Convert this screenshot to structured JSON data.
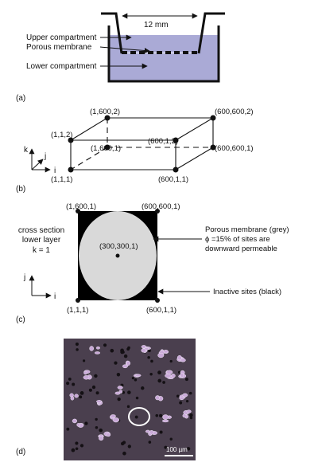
{
  "colors": {
    "liquid": "#aaaad6",
    "membrane_fill": "#d9d9d9",
    "inactive_fill": "#000000",
    "micrograph_bg": "#4a3f4e",
    "cell_color": "#c9a9d8"
  },
  "panel_a": {
    "label": "(a)",
    "dimension": "12 mm",
    "upper": "Upper compartment",
    "membrane": "Porous membrane",
    "lower": "Lower compartment"
  },
  "panel_b": {
    "label": "(b)",
    "axis_k": "k",
    "axis_j": "j",
    "axis_i": "i",
    "corners": [
      "(1,600,2)",
      "(600,600,2)",
      "(1,1,2)",
      "(600,1,2)",
      "(1,600,1)",
      "(600,600,1)",
      "(1,1,1)",
      "(600,1,1)"
    ]
  },
  "panel_c": {
    "label": "(c)",
    "section_lines": [
      "cross section",
      "lower layer",
      "k = 1"
    ],
    "axis_j": "j",
    "axis_i": "i",
    "corners": [
      "(1,600,1)",
      "(600,600,1)",
      "(1,1,1)",
      "(600,1,1)"
    ],
    "center": "(300,300,1)",
    "membrane_lines": [
      "Porous membrane (grey)",
      "ϕ =15% of sites are",
      "downward permeable"
    ],
    "inactive": "Inactive sites (black)"
  },
  "panel_d": {
    "label": "(d)",
    "scale_bar": "100 µm"
  }
}
